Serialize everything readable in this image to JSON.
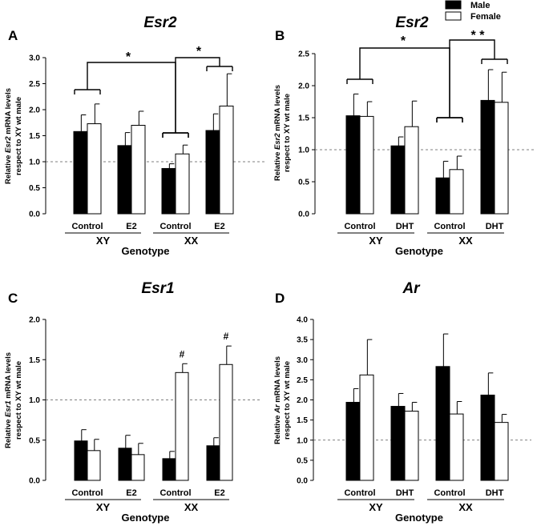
{
  "legend": {
    "male_label": "Male",
    "female_label": "Female",
    "male_color": "#000000",
    "female_color": "#ffffff"
  },
  "chart_data": [
    {
      "panel": "A",
      "type": "bar",
      "title": "Esr2",
      "ylabel_prefix": "Relative ",
      "ylabel_gene": "Esr2",
      "ylabel_suffix": " mRNA levels",
      "ylabel_line2": "respect to XY wt male",
      "xlabel": "Genotype",
      "ylim": [
        0,
        3.0
      ],
      "yticks": [
        "0.0",
        "0.5",
        "1.0",
        "1.5",
        "2.0",
        "2.5",
        "3.0"
      ],
      "reference_line": 1.0,
      "categories": [
        "Control",
        "E2",
        "Control",
        "E2"
      ],
      "genotypes": [
        "XY",
        "XX"
      ],
      "series": [
        {
          "name": "Male",
          "values": [
            1.58,
            1.31,
            0.87,
            1.6
          ],
          "errors": [
            0.32,
            0.25,
            0.09,
            0.32
          ]
        },
        {
          "name": "Female",
          "values": [
            1.73,
            1.7,
            1.15,
            2.07
          ],
          "errors": [
            0.38,
            0.27,
            0.17,
            0.62
          ]
        }
      ],
      "annotations": [
        "*",
        "*"
      ]
    },
    {
      "panel": "B",
      "type": "bar",
      "title": "Esr2",
      "ylabel_prefix": "Relative ",
      "ylabel_gene": "Esr2",
      "ylabel_suffix": " mRNA levels",
      "ylabel_line2": "respect to XY wt male",
      "xlabel": "Genotype",
      "ylim": [
        0,
        2.5
      ],
      "yticks": [
        "0.0",
        "0.5",
        "1.0",
        "1.5",
        "2.0",
        "2.5"
      ],
      "reference_line": 1.0,
      "categories": [
        "Control",
        "DHT",
        "Control",
        "DHT"
      ],
      "genotypes": [
        "XY",
        "XX"
      ],
      "series": [
        {
          "name": "Male",
          "values": [
            1.53,
            1.06,
            0.56,
            1.77
          ],
          "errors": [
            0.34,
            0.14,
            0.26,
            0.48
          ]
        },
        {
          "name": "Female",
          "values": [
            1.52,
            1.36,
            0.69,
            1.74
          ],
          "errors": [
            0.23,
            0.4,
            0.21,
            0.47
          ]
        }
      ],
      "annotations": [
        "*",
        "* *"
      ]
    },
    {
      "panel": "C",
      "type": "bar",
      "title": "Esr1",
      "ylabel_prefix": "Relative ",
      "ylabel_gene": "Esr1",
      "ylabel_suffix": " mRNA levels",
      "ylabel_line2": "respect to XY wt male",
      "xlabel": "Genotype",
      "ylim": [
        0,
        2.0
      ],
      "yticks": [
        "0.0",
        "0.5",
        "1.0",
        "1.5",
        "2.0"
      ],
      "reference_line": 1.0,
      "categories": [
        "Control",
        "E2",
        "Control",
        "E2"
      ],
      "genotypes": [
        "XY",
        "XX"
      ],
      "series": [
        {
          "name": "Male",
          "values": [
            0.49,
            0.4,
            0.27,
            0.43
          ],
          "errors": [
            0.14,
            0.16,
            0.09,
            0.1
          ]
        },
        {
          "name": "Female",
          "values": [
            0.37,
            0.32,
            1.34,
            1.44
          ],
          "errors": [
            0.14,
            0.14,
            0.11,
            0.23
          ]
        }
      ],
      "annotations": [
        "#",
        "#"
      ]
    },
    {
      "panel": "D",
      "type": "bar",
      "title": "Ar",
      "ylabel_prefix": "Relative ",
      "ylabel_gene": "Ar",
      "ylabel_suffix": " mRNA levels",
      "ylabel_line2": "respect to XY wt male",
      "xlabel": "Genotype",
      "ylim": [
        0,
        4.0
      ],
      "yticks": [
        "0.0",
        "0.5",
        "1.0",
        "1.5",
        "2.0",
        "2.5",
        "3.0",
        "3.5",
        "4.0"
      ],
      "reference_line": 1.0,
      "categories": [
        "Control",
        "DHT",
        "Control",
        "DHT"
      ],
      "genotypes": [
        "XY",
        "XX"
      ],
      "series": [
        {
          "name": "Male",
          "values": [
            1.94,
            1.84,
            2.83,
            2.12
          ],
          "errors": [
            0.34,
            0.32,
            0.81,
            0.55
          ]
        },
        {
          "name": "Female",
          "values": [
            2.62,
            1.72,
            1.65,
            1.44
          ],
          "errors": [
            0.88,
            0.22,
            0.31,
            0.2
          ]
        }
      ],
      "annotations": []
    }
  ]
}
